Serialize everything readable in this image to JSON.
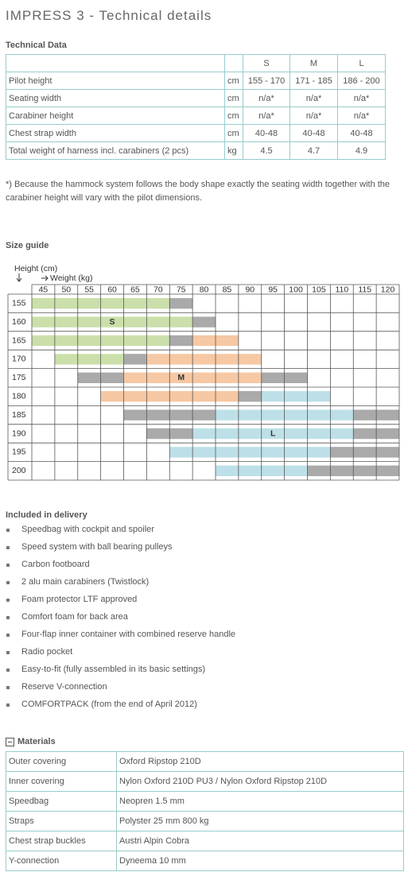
{
  "title": "IMPRESS 3 - Technical details",
  "technical_data": {
    "heading": "Technical Data",
    "columns": [
      "S",
      "M",
      "L"
    ],
    "rows": [
      {
        "label": "Pilot height",
        "unit": "cm",
        "values": [
          "155 - 170",
          "171 - 185",
          "186 - 200"
        ]
      },
      {
        "label": "Seating width",
        "unit": "cm",
        "values": [
          "n/a*",
          "n/a*",
          "n/a*"
        ]
      },
      {
        "label": "Carabiner height",
        "unit": "cm",
        "values": [
          "n/a*",
          "n/a*",
          "n/a*"
        ]
      },
      {
        "label": "Chest strap width",
        "unit": "cm",
        "values": [
          "40-48",
          "40-48",
          "40-48"
        ]
      },
      {
        "label": "Total weight of harness incl. carabiners (2 pcs)",
        "unit": "kg",
        "values": [
          4.5,
          4.7,
          4.9
        ]
      }
    ]
  },
  "note": "*) Because the hammock system follows the body shape exactly the seating width together with the carabiner height will vary with the pilot dimensions.",
  "size_guide": {
    "heading": "Size guide",
    "height_label": "Height (cm)",
    "weight_label": "Weight (kg)",
    "weights": [
      45,
      50,
      55,
      60,
      65,
      70,
      75,
      80,
      85,
      90,
      95,
      100,
      105,
      110,
      115,
      120
    ],
    "heights": [
      155,
      160,
      165,
      170,
      175,
      180,
      185,
      190,
      195,
      200
    ],
    "size_labels": [
      "S",
      "M",
      "L"
    ]
  },
  "delivery": {
    "heading": "Included in delivery",
    "items": [
      "Speedbag with cockpit and spoiler",
      "Speed system with ball bearing pulleys",
      "Carbon footboard",
      "2 alu main carabiners (Twistlock)",
      "Foam protector LTF approved",
      "Comfort foam for back area",
      "Four-flap inner container with combined reserve handle",
      "Radio pocket",
      "Easy-to-fit (fully assembled in its basic settings)",
      "Reserve V-connection",
      "COMFORTPACK (from the end of April 2012)"
    ]
  },
  "materials": {
    "heading": "Materials",
    "rows": [
      [
        "Outer covering",
        "Oxford Ripstop 210D"
      ],
      [
        "Inner covering",
        "Nylon Oxford 210D PU3 / Nylon Oxford Ripstop 210D"
      ],
      [
        "Speedbag",
        "Neopren 1.5 mm"
      ],
      [
        "Straps",
        "Polyster 25 mm 800 kg"
      ],
      [
        "Chest strap buckles",
        "Austri Alpin Cobra"
      ],
      [
        "Y-connection",
        "Dyneema 10 mm"
      ]
    ]
  }
}
